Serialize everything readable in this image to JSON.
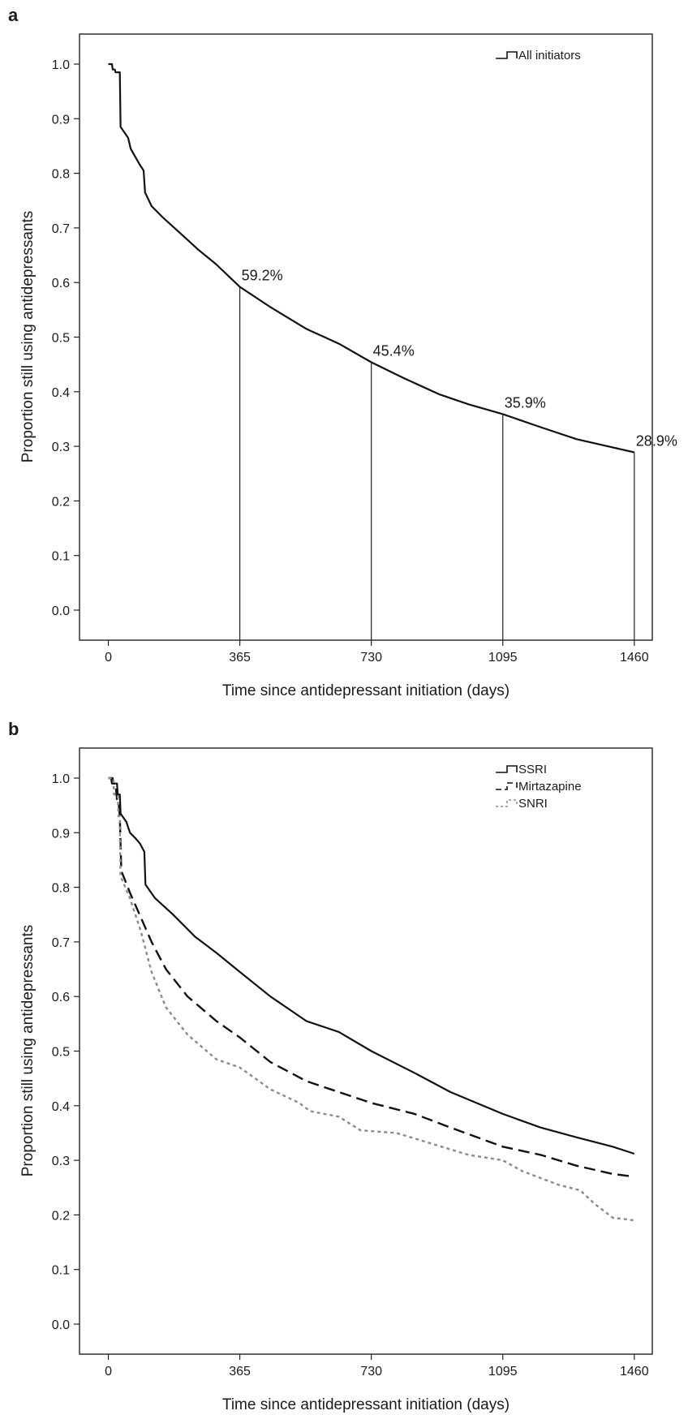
{
  "chart_data": [
    {
      "panel": "a",
      "type": "line",
      "xlabel": "Time since antidepressant initiation (days)",
      "ylabel": "Proportion still using antidepressants",
      "xticks": [
        0,
        365,
        730,
        1095,
        1460
      ],
      "yticks": [
        "0.0",
        "0.1",
        "0.2",
        "0.3",
        "0.4",
        "0.5",
        "0.6",
        "0.7",
        "0.8",
        "0.9",
        "1.0"
      ],
      "xlim": [
        -80,
        1510
      ],
      "ylim": [
        -0.055,
        1.055
      ],
      "grid": false,
      "legend_position": "top-right",
      "series": [
        {
          "name": "All initiators",
          "style": "solid",
          "color": "#111111",
          "points": [
            [
              0,
              1.0
            ],
            [
              10,
              1.0
            ],
            [
              12,
              0.99
            ],
            [
              18,
              0.99
            ],
            [
              20,
              0.985
            ],
            [
              32,
              0.985
            ],
            [
              34,
              0.885
            ],
            [
              55,
              0.865
            ],
            [
              62,
              0.845
            ],
            [
              75,
              0.83
            ],
            [
              88,
              0.815
            ],
            [
              98,
              0.805
            ],
            [
              102,
              0.765
            ],
            [
              120,
              0.74
            ],
            [
              150,
              0.72
            ],
            [
              200,
              0.69
            ],
            [
              250,
              0.66
            ],
            [
              300,
              0.633
            ],
            [
              365,
              0.592
            ],
            [
              450,
              0.555
            ],
            [
              550,
              0.515
            ],
            [
              600,
              0.5
            ],
            [
              640,
              0.488
            ],
            [
              730,
              0.454
            ],
            [
              820,
              0.425
            ],
            [
              920,
              0.395
            ],
            [
              1000,
              0.377
            ],
            [
              1095,
              0.359
            ],
            [
              1200,
              0.335
            ],
            [
              1300,
              0.313
            ],
            [
              1400,
              0.298
            ],
            [
              1460,
              0.289
            ]
          ]
        }
      ],
      "annotations": [
        {
          "x": 365,
          "y": 0.592,
          "text": "59.2%"
        },
        {
          "x": 730,
          "y": 0.454,
          "text": "45.4%"
        },
        {
          "x": 1095,
          "y": 0.359,
          "text": "35.9%"
        },
        {
          "x": 1460,
          "y": 0.289,
          "text": "28.9%"
        }
      ]
    },
    {
      "panel": "b",
      "type": "line",
      "xlabel": "Time since antidepressant initiation (days)",
      "ylabel": "Proportion still using antidepressants",
      "xticks": [
        0,
        365,
        730,
        1095,
        1460
      ],
      "yticks": [
        "0.0",
        "0.1",
        "0.2",
        "0.3",
        "0.4",
        "0.5",
        "0.6",
        "0.7",
        "0.8",
        "0.9",
        "1.0"
      ],
      "xlim": [
        -80,
        1510
      ],
      "ylim": [
        -0.055,
        1.055
      ],
      "grid": false,
      "legend_position": "top-right",
      "series": [
        {
          "name": "SSRI",
          "style": "solid",
          "color": "#111111",
          "points": [
            [
              0,
              1.0
            ],
            [
              12,
              1.0
            ],
            [
              14,
              0.99
            ],
            [
              24,
              0.99
            ],
            [
              26,
              0.97
            ],
            [
              32,
              0.97
            ],
            [
              34,
              0.935
            ],
            [
              50,
              0.92
            ],
            [
              60,
              0.9
            ],
            [
              75,
              0.89
            ],
            [
              88,
              0.88
            ],
            [
              100,
              0.865
            ],
            [
              103,
              0.805
            ],
            [
              130,
              0.78
            ],
            [
              180,
              0.75
            ],
            [
              240,
              0.71
            ],
            [
              300,
              0.68
            ],
            [
              365,
              0.645
            ],
            [
              450,
              0.6
            ],
            [
              550,
              0.555
            ],
            [
              640,
              0.535
            ],
            [
              730,
              0.5
            ],
            [
              850,
              0.46
            ],
            [
              950,
              0.425
            ],
            [
              1095,
              0.385
            ],
            [
              1200,
              0.36
            ],
            [
              1300,
              0.342
            ],
            [
              1400,
              0.325
            ],
            [
              1460,
              0.312
            ]
          ]
        },
        {
          "name": "Mirtazapine",
          "style": "dashed",
          "color": "#111111",
          "points": [
            [
              0,
              1.0
            ],
            [
              8,
              1.0
            ],
            [
              10,
              0.99
            ],
            [
              20,
              0.99
            ],
            [
              24,
              0.96
            ],
            [
              28,
              0.96
            ],
            [
              32,
              0.93
            ],
            [
              36,
              0.83
            ],
            [
              60,
              0.79
            ],
            [
              90,
              0.745
            ],
            [
              120,
              0.7
            ],
            [
              160,
              0.65
            ],
            [
              220,
              0.6
            ],
            [
              300,
              0.555
            ],
            [
              365,
              0.525
            ],
            [
              450,
              0.48
            ],
            [
              550,
              0.445
            ],
            [
              640,
              0.425
            ],
            [
              730,
              0.405
            ],
            [
              850,
              0.385
            ],
            [
              950,
              0.36
            ],
            [
              1095,
              0.325
            ],
            [
              1200,
              0.31
            ],
            [
              1300,
              0.29
            ],
            [
              1400,
              0.275
            ],
            [
              1460,
              0.27
            ]
          ]
        },
        {
          "name": "SNRI",
          "style": "dotted",
          "color": "#8a8a8a",
          "points": [
            [
              0,
              1.0
            ],
            [
              14,
              1.0
            ],
            [
              16,
              0.97
            ],
            [
              26,
              0.97
            ],
            [
              28,
              0.93
            ],
            [
              32,
              0.93
            ],
            [
              34,
              0.82
            ],
            [
              60,
              0.78
            ],
            [
              90,
              0.72
            ],
            [
              120,
              0.645
            ],
            [
              160,
              0.58
            ],
            [
              220,
              0.53
            ],
            [
              300,
              0.485
            ],
            [
              365,
              0.47
            ],
            [
              450,
              0.43
            ],
            [
              530,
              0.405
            ],
            [
              560,
              0.39
            ],
            [
              640,
              0.38
            ],
            [
              700,
              0.355
            ],
            [
              800,
              0.35
            ],
            [
              900,
              0.33
            ],
            [
              1000,
              0.31
            ],
            [
              1095,
              0.3
            ],
            [
              1150,
              0.28
            ],
            [
              1250,
              0.255
            ],
            [
              1310,
              0.245
            ],
            [
              1350,
              0.22
            ],
            [
              1400,
              0.195
            ],
            [
              1460,
              0.19
            ]
          ]
        }
      ],
      "annotations": []
    }
  ]
}
